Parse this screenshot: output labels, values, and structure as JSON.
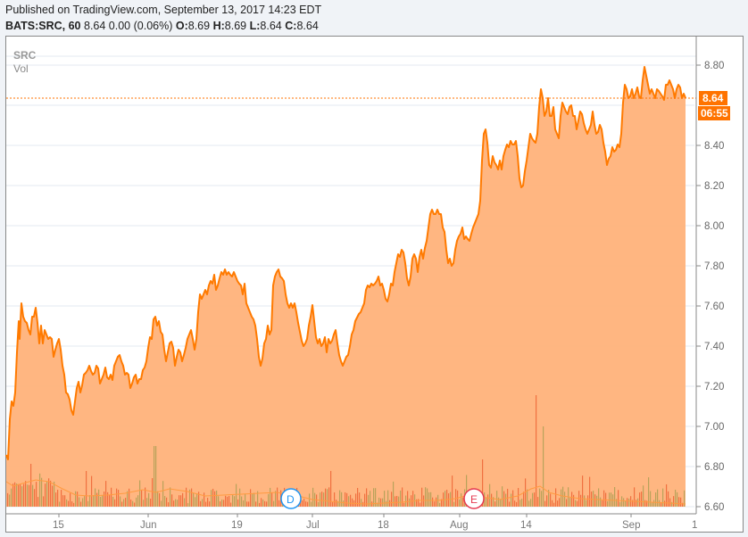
{
  "header": {
    "published": "Published on TradingView.com, September 13, 2017 14:23 EDT",
    "symbol": "BATS:SRC, 60",
    "quote": "8.64 0.00 (0.06%)",
    "o_label": "O:",
    "o": "8.69",
    "h_label": "H:",
    "h": "8.69",
    "l_label": "L:",
    "l": "8.64",
    "c_label": "C:",
    "c": "8.64"
  },
  "legend": {
    "series": "SRC",
    "volume": "Vol"
  },
  "price_tag": {
    "value": "8.64",
    "countdown": "06:55",
    "color": "#ff7300"
  },
  "events": [
    {
      "label": "D",
      "type": "dividend",
      "color": "#2196f3"
    },
    {
      "label": "E",
      "type": "earnings",
      "color": "#e53950"
    }
  ],
  "colors": {
    "line": "#ff7a00",
    "fill": "#ffb27a",
    "vol_up": "#b9a25a",
    "vol_down": "#f07040",
    "vol_ma": "#ff9a40",
    "grid": "#e3eaf0"
  },
  "chart_data": {
    "type": "area",
    "title": "BATS:SRC, 60",
    "xlabel": "",
    "ylabel": "",
    "ylim": [
      6.6,
      8.8
    ],
    "y_ticks": [
      "8.80",
      "8.60",
      "8.40",
      "8.20",
      "8.00",
      "7.80",
      "7.60",
      "7.40",
      "7.20",
      "7.00",
      "6.80",
      "6.60"
    ],
    "x_ticks": [
      "15",
      "Jun",
      "19",
      "Jul",
      "18",
      "Aug",
      "14",
      "Sep",
      "1"
    ],
    "grid": true,
    "last_price": 8.64,
    "series": [
      {
        "name": "SRC",
        "x": [
          "May 8",
          "May 10",
          "May 12",
          "May 15",
          "May 17",
          "May 19",
          "May 22",
          "May 24",
          "May 26",
          "May 31",
          "Jun 2",
          "Jun 6",
          "Jun 8",
          "Jun 12",
          "Jun 14",
          "Jun 16",
          "Jun 19",
          "Jun 21",
          "Jun 23",
          "Jun 27",
          "Jun 29",
          "Jul 3",
          "Jul 6",
          "Jul 10",
          "Jul 12",
          "Jul 14",
          "Jul 18",
          "Jul 20",
          "Jul 24",
          "Jul 26",
          "Jul 28",
          "Aug 1",
          "Aug 3",
          "Aug 7",
          "Aug 9",
          "Aug 11",
          "Aug 15",
          "Aug 17",
          "Aug 21",
          "Aug 23",
          "Aug 25",
          "Aug 29",
          "Aug 31",
          "Sep 5",
          "Sep 7",
          "Sep 11",
          "Sep 13"
        ],
        "values": [
          6.85,
          7.5,
          7.55,
          7.35,
          7.05,
          7.25,
          7.3,
          7.3,
          7.22,
          7.5,
          7.4,
          7.38,
          7.65,
          7.78,
          7.75,
          7.62,
          7.3,
          7.55,
          7.76,
          7.5,
          7.4,
          7.35,
          7.38,
          7.55,
          7.72,
          7.65,
          7.85,
          7.7,
          7.9,
          8.1,
          7.85,
          7.95,
          8.45,
          8.3,
          8.4,
          8.2,
          8.65,
          8.5,
          8.52,
          8.35,
          8.4,
          8.72,
          8.68,
          8.72,
          8.7,
          8.7,
          8.64
        ]
      },
      {
        "name": "Vol",
        "note": "volume histogram, no scale shown"
      }
    ]
  }
}
